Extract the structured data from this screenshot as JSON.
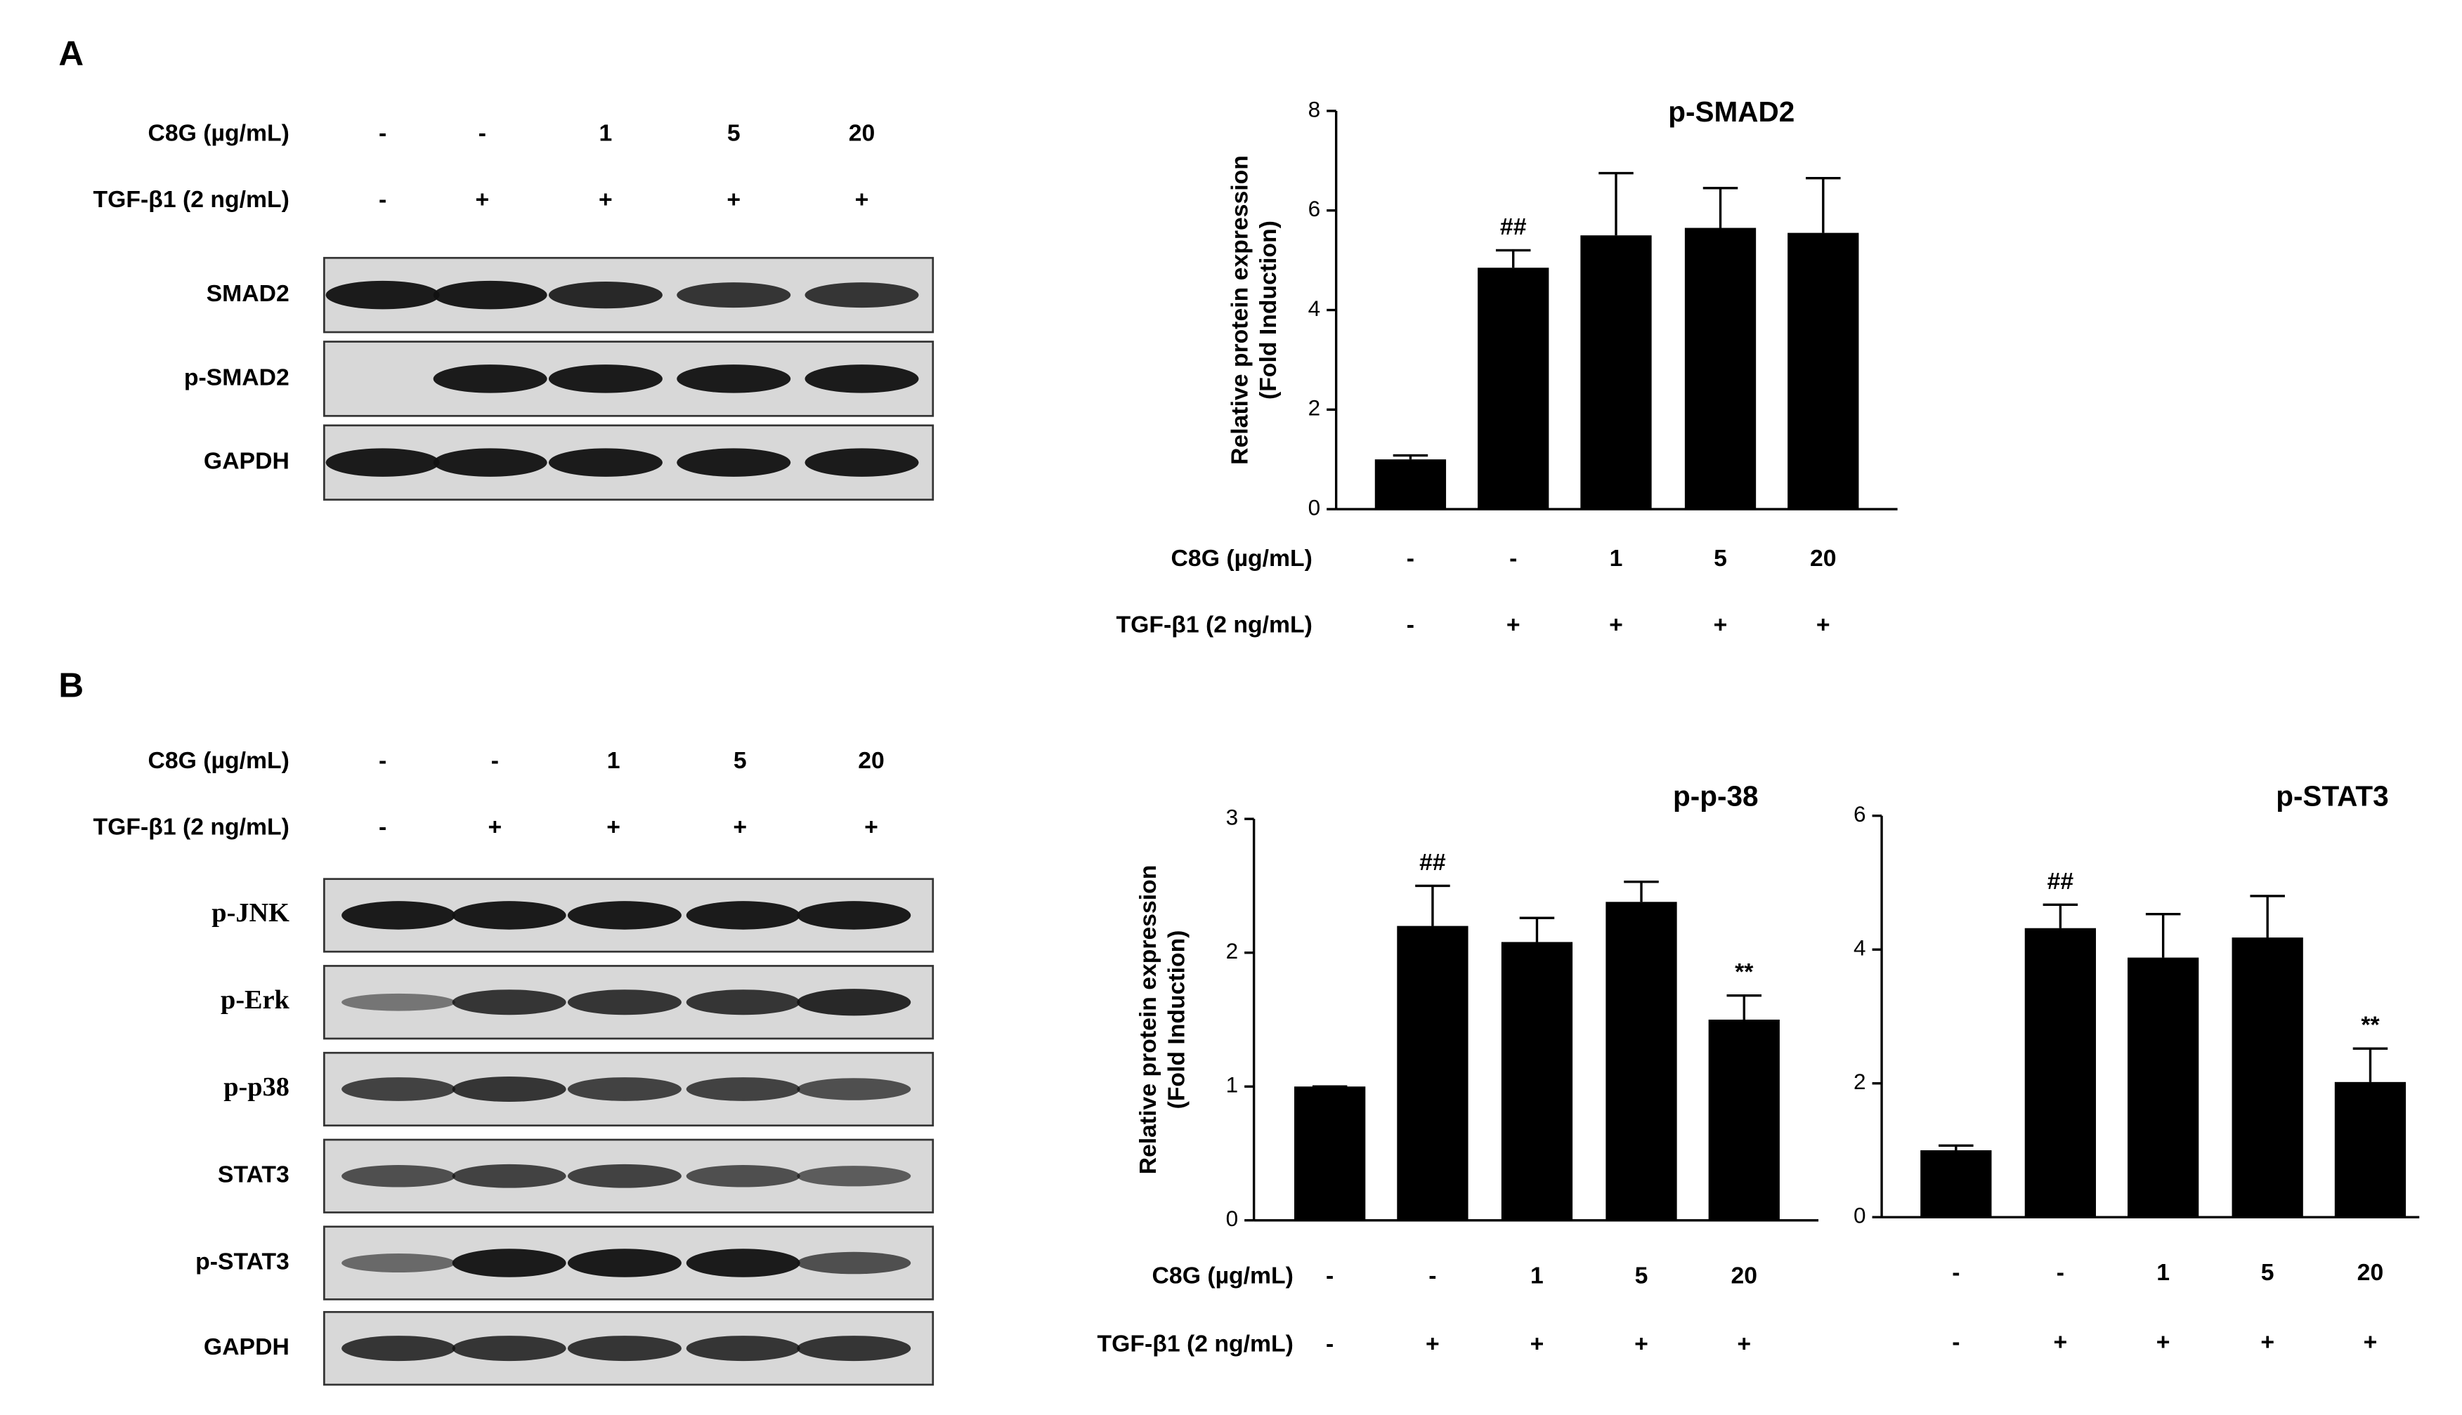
{
  "panel_a": {
    "label": "A",
    "conditions": [
      {
        "label": "C8G (µg/mL)",
        "values": [
          "-",
          "-",
          "1",
          "5",
          "20"
        ]
      },
      {
        "label": "TGF-β1 (2 ng/mL)",
        "values": [
          "-",
          "+",
          "+",
          "+",
          "+"
        ]
      }
    ],
    "blots": [
      "SMAD2",
      "p-SMAD2",
      "GAPDH"
    ]
  },
  "panel_b": {
    "label": "B",
    "conditions": [
      {
        "label": "C8G (µg/mL)",
        "values": [
          "-",
          "-",
          "1",
          "5",
          "20"
        ]
      },
      {
        "label": "TGF-β1 (2 ng/mL)",
        "values": [
          "-",
          "+",
          "+",
          "+",
          "+"
        ]
      }
    ],
    "blots": [
      "p-JNK",
      "p-Erk",
      "p-p38",
      "STAT3",
      "p-STAT3",
      "GAPDH"
    ]
  },
  "chart_data": [
    {
      "type": "bar",
      "title": "p-SMAD2",
      "ylabel": [
        "Relative protein expression",
        "(Fold Induction)"
      ],
      "values": [
        1.0,
        4.85,
        5.5,
        5.65,
        5.55
      ],
      "errors": [
        0.08,
        0.35,
        1.25,
        0.8,
        1.1
      ],
      "markers": [
        null,
        "##",
        null,
        null,
        null
      ],
      "color": "#000000",
      "ylim": [
        0,
        8
      ],
      "yticks": [
        0,
        2,
        4,
        6,
        8
      ],
      "condition_rows": [
        {
          "label": "C8G (µg/mL)",
          "values": [
            "-",
            "-",
            "1",
            "5",
            "20"
          ]
        },
        {
          "label": "TGF-β1 (2 ng/mL)",
          "values": [
            "-",
            "+",
            "+",
            "+",
            "+"
          ]
        }
      ]
    },
    {
      "type": "bar",
      "title": "p-p-38",
      "ylabel": [
        "Relative protein expression",
        "(Fold Induction)"
      ],
      "values": [
        1.0,
        2.2,
        2.08,
        2.38,
        1.5
      ],
      "errors": [
        0,
        0.3,
        0.18,
        0.15,
        0.18
      ],
      "markers": [
        null,
        "##",
        null,
        null,
        "**"
      ],
      "color": "#000000",
      "ylim": [
        0,
        3
      ],
      "yticks": [
        0,
        1,
        2,
        3
      ],
      "condition_rows": [
        {
          "label": "C8G (µg/mL)",
          "values": [
            "-",
            "-",
            "1",
            "5",
            "20"
          ]
        },
        {
          "label": "TGF-β1 (2 ng/mL)",
          "values": [
            "-",
            "+",
            "+",
            "+",
            "+"
          ]
        }
      ]
    },
    {
      "type": "bar",
      "title": "p-STAT3",
      "values": [
        1.0,
        4.32,
        3.88,
        4.18,
        2.02
      ],
      "errors": [
        0.07,
        0.35,
        0.65,
        0.62,
        0.5
      ],
      "markers": [
        null,
        "##",
        null,
        null,
        "**"
      ],
      "color": "#000000",
      "ylim": [
        0,
        6
      ],
      "yticks": [
        0,
        2,
        4,
        6
      ],
      "condition_rows": [
        {
          "values": [
            "-",
            "-",
            "1",
            "5",
            "20"
          ]
        },
        {
          "values": [
            "-",
            "+",
            "+",
            "+",
            "+"
          ]
        }
      ]
    }
  ]
}
